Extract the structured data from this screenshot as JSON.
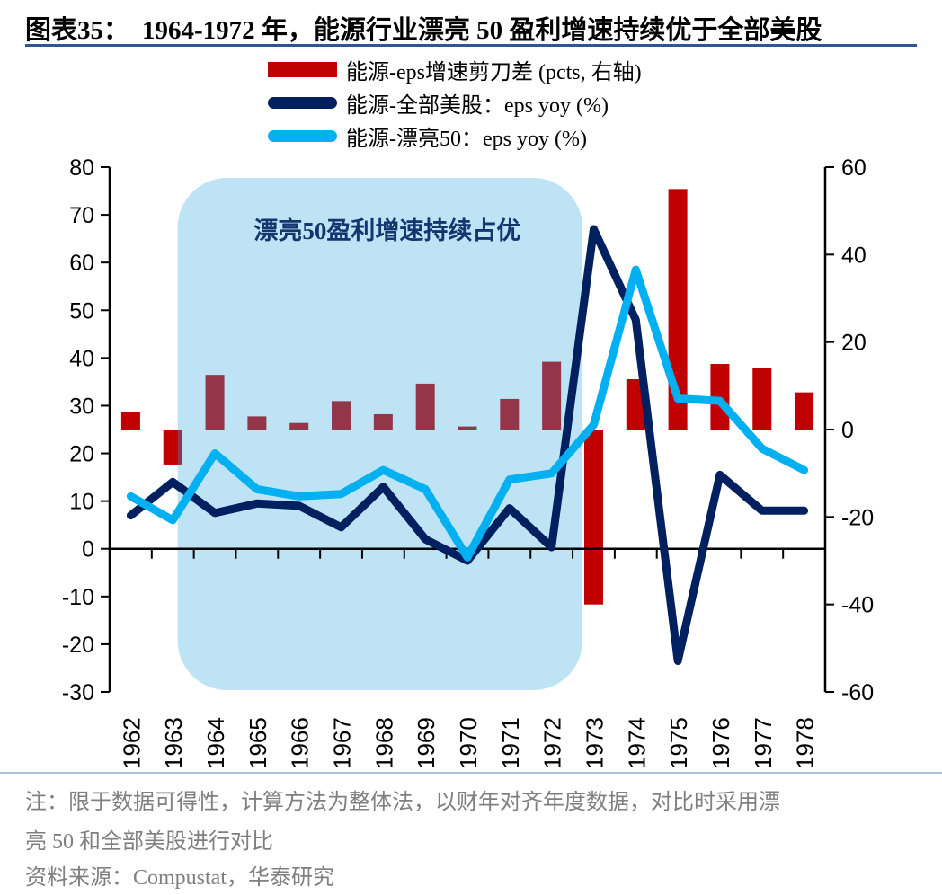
{
  "header": {
    "title_label": "图表35：",
    "title_text": "1964-1972 年，能源行业漂亮 50 盈利增速持续优于全部美股",
    "underline_color": "#2F5597"
  },
  "legend": [
    {
      "swatch": "bar",
      "color": "#C00000",
      "label": "能源-eps增速剪刀差 (pcts, 右轴)"
    },
    {
      "swatch": "line",
      "color": "#002060",
      "label": "能源-全部美股：eps yoy (%)"
    },
    {
      "swatch": "line",
      "color": "#00B0F0",
      "label": "能源-漂亮50：eps yoy (%)"
    }
  ],
  "annotation": {
    "text": "漂亮50盈利增速持续占优",
    "color": "#14356E"
  },
  "chart_data": {
    "type": "combo",
    "title": "1964-1972 年，能源行业漂亮 50 盈利增速持续优于全部美股",
    "categories": [
      1962,
      1963,
      1964,
      1965,
      1966,
      1967,
      1968,
      1969,
      1970,
      1971,
      1972,
      1973,
      1974,
      1975,
      1976,
      1977,
      1978
    ],
    "series": [
      {
        "name": "能源-eps增速剪刀差 (pcts, 右轴)",
        "type": "bar",
        "axis": "right",
        "color": "#C00000",
        "values": [
          4,
          -8,
          12.5,
          3,
          1.5,
          6.5,
          3.5,
          10.5,
          0.7,
          7,
          15.5,
          -40,
          11.5,
          55,
          15,
          14,
          8.5
        ]
      },
      {
        "name": "能源-全部美股：eps yoy (%)",
        "type": "line",
        "axis": "left",
        "color": "#002060",
        "values": [
          7,
          14,
          7.5,
          9.5,
          9,
          4.5,
          13,
          2,
          -2.5,
          8.5,
          0.3,
          67,
          48,
          -23.5,
          15.5,
          8,
          8
        ]
      },
      {
        "name": "能源-漂亮50：eps yoy (%)",
        "type": "line",
        "axis": "left",
        "color": "#00B0F0",
        "values": [
          11,
          6,
          20,
          12.5,
          11,
          11.5,
          16.5,
          12.5,
          -1.8,
          14.5,
          15.8,
          26,
          58.5,
          31.5,
          31,
          21,
          16.5
        ]
      }
    ],
    "left_axis": {
      "min": -30,
      "max": 80,
      "step": 10
    },
    "right_axis": {
      "min": -60,
      "max": 60,
      "step": 20
    },
    "grid": false,
    "legend_position": "top",
    "highlight": {
      "label": "漂亮50盈利增速持续占优",
      "from_year": 1964,
      "to_year": 1972,
      "color": "#33A8E0",
      "opacity": 0.32
    }
  },
  "footer": {
    "note_line1": "注：限于数据可得性，计算方法为整体法，以财年对齐年度数据，对比时采用漂",
    "note_line2": "亮 50 和全部美股进行对比",
    "source": "资料来源：Compustat，华泰研究"
  }
}
